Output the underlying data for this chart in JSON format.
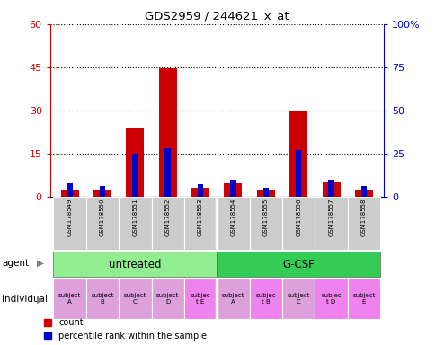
{
  "title": "GDS2959 / 244621_x_at",
  "samples": [
    "GSM178549",
    "GSM178550",
    "GSM178551",
    "GSM178552",
    "GSM178553",
    "GSM178554",
    "GSM178555",
    "GSM178556",
    "GSM178557",
    "GSM178558"
  ],
  "count_values": [
    2.5,
    2.0,
    24.0,
    44.5,
    3.0,
    4.5,
    2.0,
    30.0,
    5.0,
    2.5
  ],
  "percentile_values": [
    8,
    6,
    25,
    28,
    7,
    10,
    5,
    27,
    10,
    6
  ],
  "ylim_left": [
    0,
    60
  ],
  "ylim_right": [
    0,
    100
  ],
  "yticks_left": [
    0,
    15,
    30,
    45,
    60
  ],
  "yticks_right": [
    0,
    25,
    50,
    75,
    100
  ],
  "agent_colors": [
    "#90ee90",
    "#33cc55"
  ],
  "individual_labels": [
    "subject\nA",
    "subject\nB",
    "subject\nC",
    "subject\nD",
    "subjec\nt E",
    "subject\nA",
    "subjec\nt B",
    "subject\nC",
    "subjec\nt D",
    "subject\nE"
  ],
  "individual_colors": [
    "#dda0dd",
    "#dda0dd",
    "#dda0dd",
    "#dda0dd",
    "#ee82ee",
    "#dda0dd",
    "#ee82ee",
    "#dda0dd",
    "#ee82ee",
    "#ee82ee"
  ],
  "count_color": "#cc0000",
  "percentile_color": "#0000cc",
  "bar_width": 0.55,
  "pct_bar_width": 0.18,
  "left_axis_color": "#cc0000",
  "right_axis_color": "#0000cc",
  "sample_bg_color": "#cccccc",
  "sample_sep_color": "#ffffff"
}
